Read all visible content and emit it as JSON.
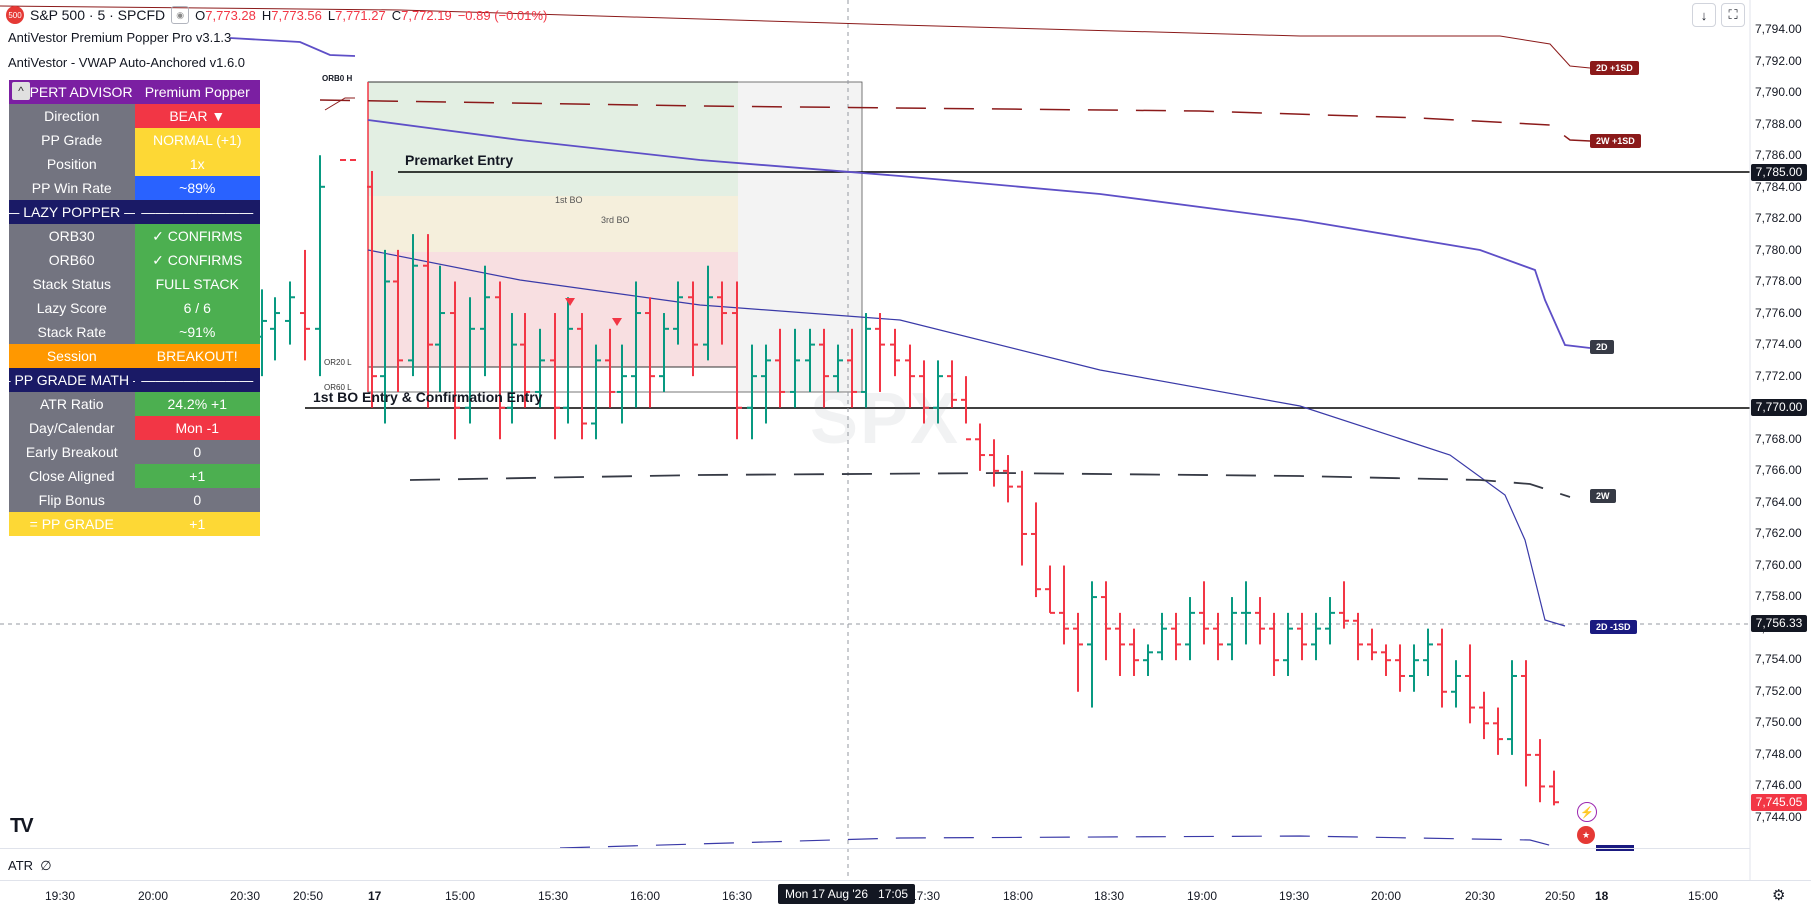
{
  "header": {
    "symbol_badge": "500",
    "symbol": "S&P 500 · 5 · SPCFD",
    "open_label": "O",
    "open": "7,773.28",
    "high_label": "H",
    "high": "7,773.56",
    "low_label": "L",
    "low": "7,771.27",
    "close_label": "C",
    "close": "7,772.19",
    "change": "−0.89 (−0.01%)",
    "indicator1": "AntiVestor Premium Popper Pro v3.1.3",
    "indicator2": "AntiVestor - VWAP Auto-Anchored v1.6.0"
  },
  "watermark": "SPX",
  "expert_advisor": {
    "title_left": "EXPERT ADVISOR",
    "title_right": "Premium Popper",
    "collapse_icon": "^",
    "rows": [
      {
        "label": "Direction",
        "value": "BEAR ▼",
        "color": "#f23645"
      },
      {
        "label": "PP Grade",
        "value": "NORMAL (+1)",
        "color": "#fdd835"
      },
      {
        "label": "Position",
        "value": "1x",
        "color": "#fdd835"
      },
      {
        "label": "PP Win Rate",
        "value": "~89%",
        "color": "#2962ff"
      }
    ],
    "lazy_header": "— LAZY POPPER —",
    "lazy_header_right": "————————",
    "lazy_rows": [
      {
        "label": "ORB30",
        "value": "✓ CONFIRMS",
        "color": "#4caf50"
      },
      {
        "label": "ORB60",
        "value": "✓ CONFIRMS",
        "color": "#4caf50"
      },
      {
        "label": "Stack Status",
        "value": "FULL STACK",
        "color": "#4caf50"
      },
      {
        "label": "Lazy Score",
        "value": "6 / 6",
        "color": "#4caf50"
      },
      {
        "label": "Stack Rate",
        "value": "~91%",
        "color": "#4caf50"
      },
      {
        "label": "Session",
        "value": "BREAKOUT!",
        "color": "#ff9800",
        "label_color": "#ff9800"
      }
    ],
    "math_header": "— PP GRADE MATH —",
    "math_header_right": "————————",
    "math_rows": [
      {
        "label": "ATR Ratio",
        "value": "24.2% +1",
        "color": "#4caf50"
      },
      {
        "label": "Day/Calendar",
        "value": "Mon -1",
        "color": "#f23645"
      },
      {
        "label": "Early Breakout",
        "value": "0",
        "color": "#737480"
      },
      {
        "label": "Close Aligned",
        "value": "+1",
        "color": "#4caf50"
      },
      {
        "label": "Flip Bonus",
        "value": "0",
        "color": "#737480"
      }
    ],
    "grade_label": "= PP GRADE",
    "grade_value": "+1"
  },
  "annotations": {
    "orb60h": "ORB0 H",
    "premarket": "Premarket Entry",
    "first_bo": "1st BO",
    "third_bo": "3rd BO",
    "or20l": "OR20 L",
    "or60l": "OR60 L",
    "bo_entry": "1st BO Entry & Confirmation Entry"
  },
  "vwap_tags": [
    {
      "text": "2D +1SD",
      "color": "#8b1a1a"
    },
    {
      "text": "2W +1SD",
      "color": "#8b1a1a"
    },
    {
      "text": "2D",
      "color": "#363a45"
    },
    {
      "text": "2W",
      "color": "#363a45"
    },
    {
      "text": "2D -1SD",
      "color": "#1a1a80"
    }
  ],
  "price_axis": {
    "ticks": [
      "7,794.00",
      "7,792.00",
      "7,790.00",
      "7,788.00",
      "7,786.00",
      "7,784.00",
      "7,782.00",
      "7,780.00",
      "7,778.00",
      "7,776.00",
      "7,774.00",
      "7,772.00",
      "7,770.00",
      "7,768.00",
      "7,766.00",
      "7,764.00",
      "7,762.00",
      "7,760.00",
      "7,758.00",
      "7,756.00",
      "7,754.00",
      "7,752.00",
      "7,750.00",
      "7,748.00",
      "7,746.00",
      "7,744.00"
    ],
    "label_premarket": "7,785.00",
    "label_bo": "7,770.00",
    "label_crosshair": "7,756.33",
    "label_last": "7,745.05"
  },
  "time_axis": {
    "ticks": [
      "19:30",
      "20:00",
      "20:30",
      "20:50",
      "17",
      "15:00",
      "15:30",
      "16:00",
      "16:30",
      "17:30",
      "18:00",
      "18:30",
      "19:00",
      "19:30",
      "20:00",
      "20:30",
      "20:50",
      "18",
      "15:00"
    ],
    "crosshair_label": "Mon 17 Aug '26   17:05"
  },
  "atr_pane": {
    "label": "ATR",
    "value": "∅"
  },
  "logo": "TV",
  "icons": {
    "download": "↓",
    "fullscreen": "⛶",
    "settings": "⚙"
  }
}
